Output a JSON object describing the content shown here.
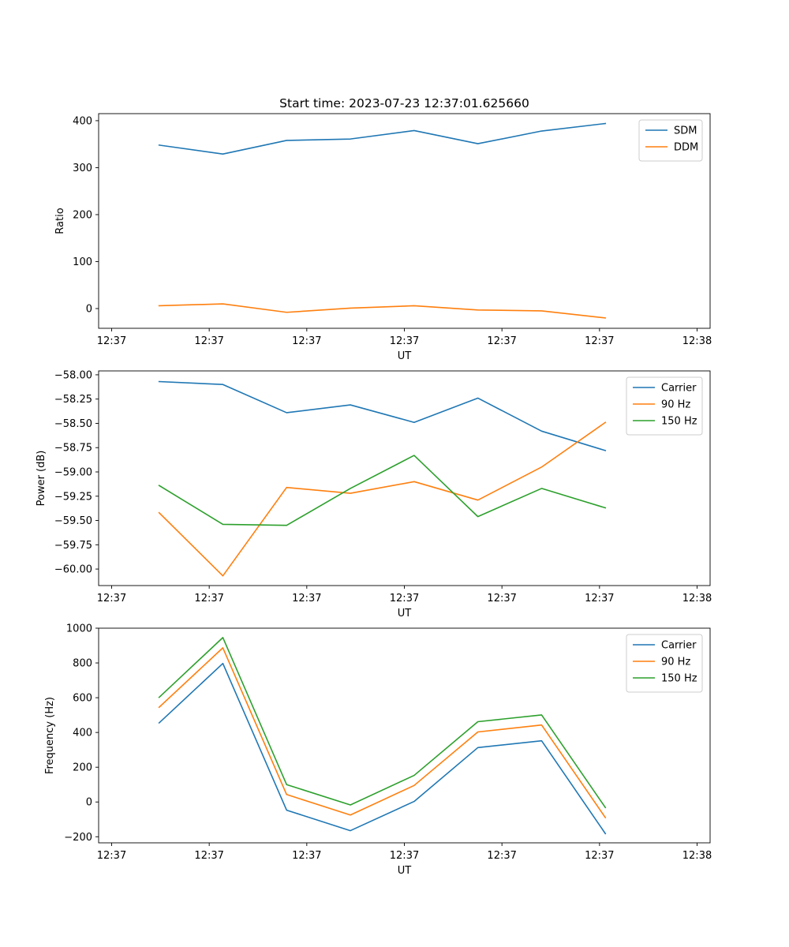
{
  "chart_data": [
    {
      "type": "line",
      "title": "Start time: 2023-07-23 12:37:01.625660",
      "xlabel": "UT",
      "ylabel": "Ratio",
      "xlim": [
        -0.2,
        9.2
      ],
      "ylim": [
        -42,
        415
      ],
      "xticks": [
        0,
        1.5,
        3,
        4.5,
        6,
        7.5,
        9
      ],
      "xtick_labels": [
        "12:37",
        "12:37",
        "12:37",
        "12:37",
        "12:37",
        "12:37",
        "12:38"
      ],
      "yticks": [
        0,
        100,
        200,
        300,
        400
      ],
      "ytick_labels": [
        "0",
        "100",
        "200",
        "300",
        "400"
      ],
      "legend_position": "top-right",
      "x": [
        0.73,
        1.71,
        2.69,
        3.67,
        4.65,
        5.63,
        6.61,
        7.59
      ],
      "series": [
        {
          "name": "SDM",
          "color": "#1f77b4",
          "values": [
            348,
            329,
            358,
            361,
            379,
            351,
            378,
            394
          ]
        },
        {
          "name": "DDM",
          "color": "#ff7f0e",
          "values": [
            6,
            10,
            -8,
            1,
            6,
            -3,
            -5,
            -20
          ]
        }
      ]
    },
    {
      "type": "line",
      "title": "",
      "xlabel": "UT",
      "ylabel": "Power (dB)",
      "xlim": [
        -0.2,
        9.2
      ],
      "ylim": [
        -60.17,
        -57.96
      ],
      "xticks": [
        0,
        1.5,
        3,
        4.5,
        6,
        7.5,
        9
      ],
      "xtick_labels": [
        "12:37",
        "12:37",
        "12:37",
        "12:37",
        "12:37",
        "12:37",
        "12:38"
      ],
      "yticks": [
        -58.0,
        -58.25,
        -58.5,
        -58.75,
        -59.0,
        -59.25,
        -59.5,
        -59.75,
        -60.0
      ],
      "ytick_labels": [
        "−58.00",
        "−58.25",
        "−58.50",
        "−58.75",
        "−59.00",
        "−59.25",
        "−59.50",
        "−59.75",
        "−60.00"
      ],
      "legend_position": "top-right",
      "x": [
        0.73,
        1.71,
        2.69,
        3.67,
        4.65,
        5.63,
        6.61,
        7.59
      ],
      "series": [
        {
          "name": "Carrier",
          "color": "#1f77b4",
          "values": [
            -58.07,
            -58.1,
            -58.39,
            -58.31,
            -58.49,
            -58.24,
            -58.58,
            -58.78
          ]
        },
        {
          "name": "90 Hz",
          "color": "#ff7f0e",
          "values": [
            -59.42,
            -60.07,
            -59.16,
            -59.22,
            -59.1,
            -59.29,
            -58.95,
            -58.49
          ]
        },
        {
          "name": "150 Hz",
          "color": "#2ca02c",
          "values": [
            -59.14,
            -59.54,
            -59.55,
            -59.17,
            -58.83,
            -59.46,
            -59.17,
            -59.37
          ]
        }
      ]
    },
    {
      "type": "line",
      "title": "",
      "xlabel": "UT",
      "ylabel": "Frequency (Hz)",
      "xlim": [
        -0.2,
        9.2
      ],
      "ylim": [
        -235,
        1000
      ],
      "xticks": [
        0,
        1.5,
        3,
        4.5,
        6,
        7.5,
        9
      ],
      "xtick_labels": [
        "12:37",
        "12:37",
        "12:37",
        "12:37",
        "12:37",
        "12:37",
        "12:38"
      ],
      "yticks": [
        -200,
        0,
        200,
        400,
        600,
        800,
        1000
      ],
      "ytick_labels": [
        "−200",
        "0",
        "200",
        "400",
        "600",
        "800",
        "1000"
      ],
      "legend_position": "top-right",
      "x": [
        0.73,
        1.71,
        2.69,
        3.67,
        4.65,
        5.63,
        6.61,
        7.59
      ],
      "series": [
        {
          "name": "Carrier",
          "color": "#1f77b4",
          "values": [
            455,
            797,
            -47,
            -165,
            3,
            313,
            352,
            -182
          ]
        },
        {
          "name": "90 Hz",
          "color": "#ff7f0e",
          "values": [
            545,
            887,
            43,
            -75,
            95,
            403,
            443,
            -90
          ]
        },
        {
          "name": "150 Hz",
          "color": "#2ca02c",
          "values": [
            602,
            946,
            100,
            -17,
            153,
            462,
            501,
            -32
          ]
        }
      ]
    }
  ]
}
